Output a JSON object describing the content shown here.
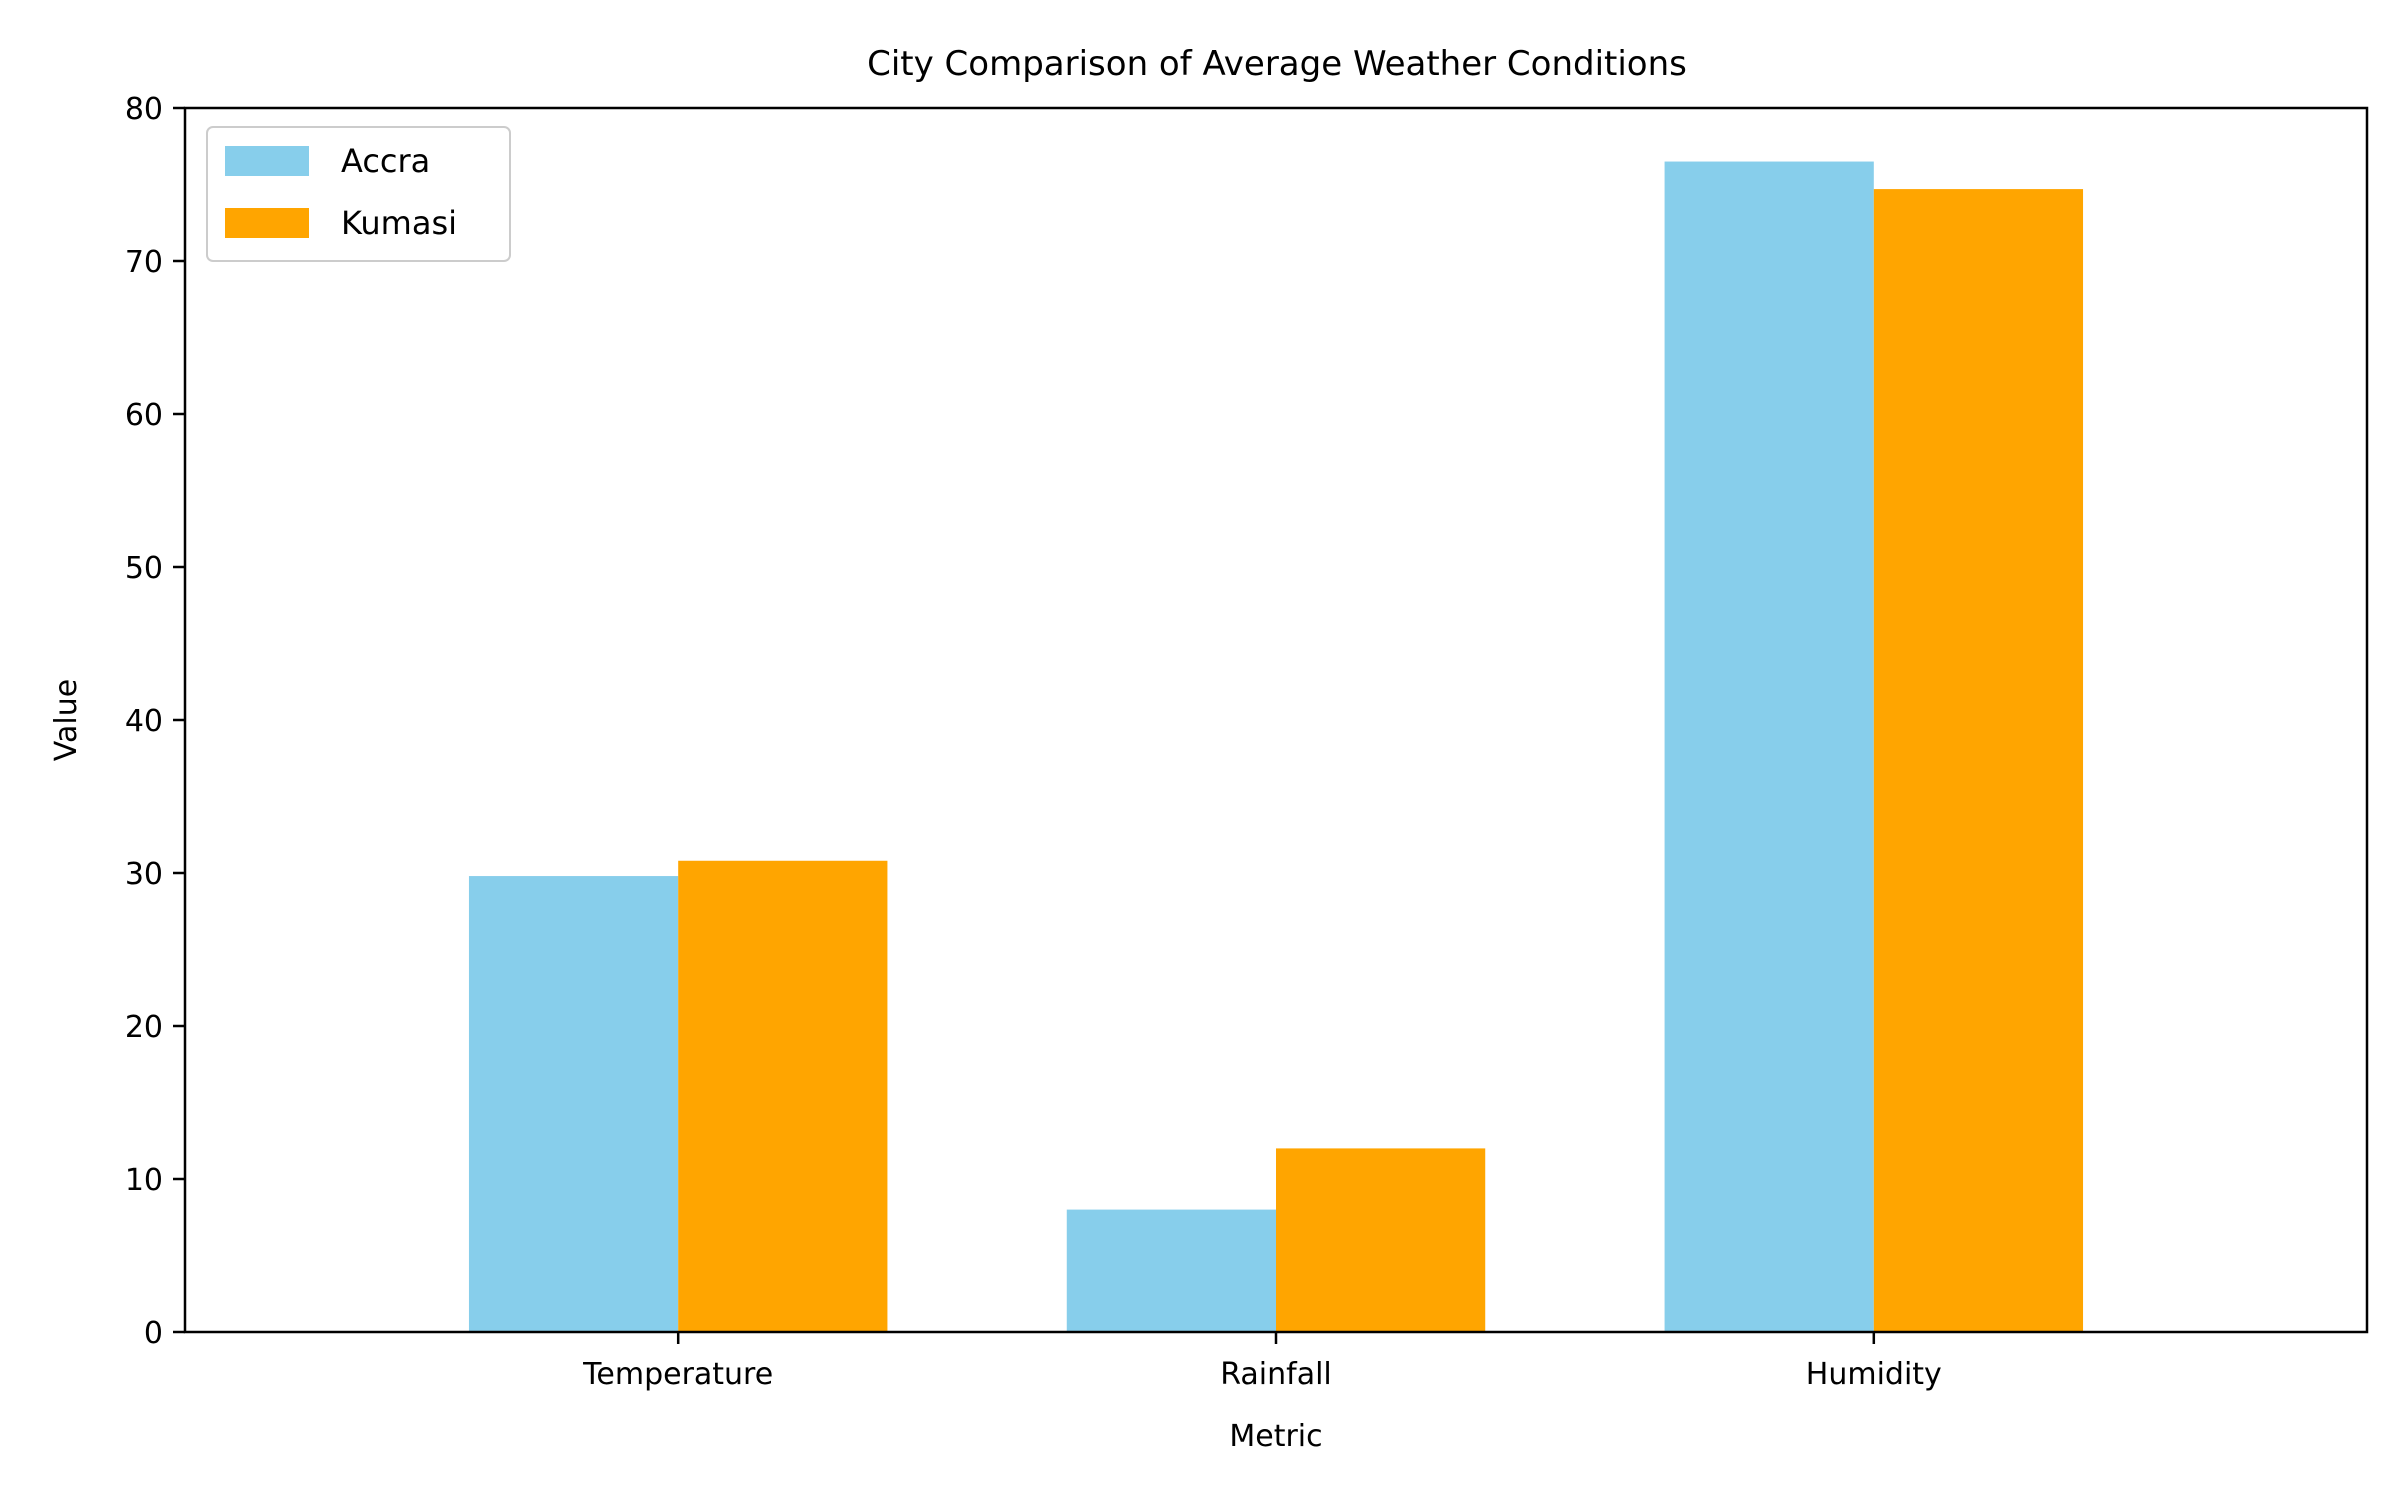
{
  "chart_data": {
    "type": "bar",
    "title": "City Comparison of Average Weather Conditions",
    "xlabel": "Metric",
    "ylabel": "Value",
    "categories": [
      "Temperature",
      "Rainfall",
      "Humidity"
    ],
    "series": [
      {
        "name": "Accra",
        "color": "#87CEEB",
        "values": [
          29.8,
          8.0,
          76.5
        ]
      },
      {
        "name": "Kumasi",
        "color": "#FFA500",
        "values": [
          30.8,
          12.0,
          74.7
        ]
      }
    ],
    "ylim": [
      0,
      80
    ],
    "yticks": [
      "0",
      "10",
      "20",
      "30",
      "40",
      "50",
      "60",
      "70",
      "80"
    ],
    "grid": false,
    "legend_position": "top-left"
  }
}
